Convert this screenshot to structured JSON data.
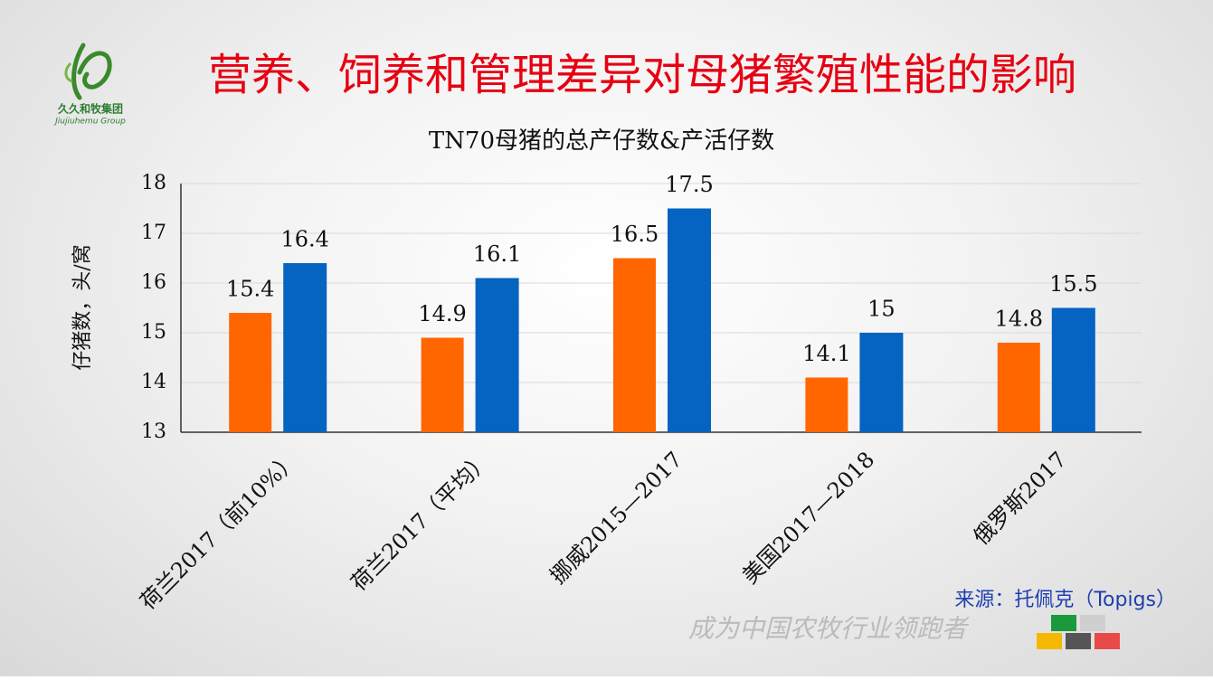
{
  "header": {
    "title": "营养、饲养和管理差异对母猪繁殖性能的影响",
    "logo_name": "久久和牧集团",
    "logo_sub": "Jiujiuhemu Group"
  },
  "footer": {
    "source": "来源：托佩克（Topigs）",
    "slogan": "成为中国农牧行业领跑者"
  },
  "chart_data": {
    "type": "bar",
    "title": "TN70母猪的总产仔数&产活仔数",
    "y_label": "仔猪数，头/窝",
    "categories": [
      "荷兰2017（前10%）",
      "荷兰2017（平均）",
      "挪威2015—2017",
      "美国2017—2018",
      "俄罗斯2017"
    ],
    "series": [
      {
        "color": "#ff6600",
        "values": [
          15.4,
          14.9,
          16.5,
          14.1,
          14.8
        ]
      },
      {
        "color": "#0563c1",
        "values": [
          16.4,
          16.1,
          17.5,
          15,
          15.5
        ]
      }
    ],
    "ylim": [
      13,
      18
    ],
    "yticks": [
      13,
      14,
      15,
      16,
      17,
      18
    ],
    "grid": true
  }
}
